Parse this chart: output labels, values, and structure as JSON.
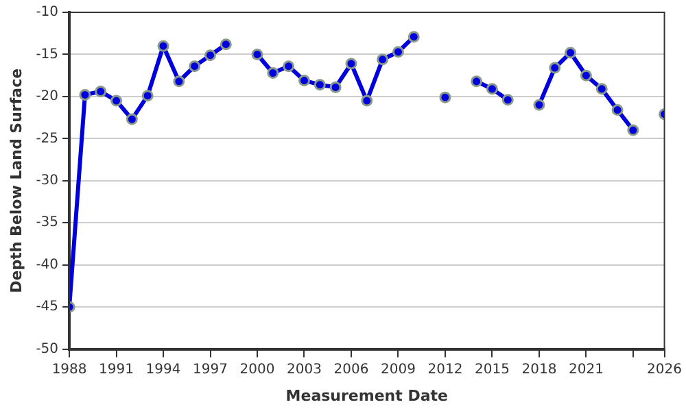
{
  "chart_data": {
    "type": "line",
    "xlabel": "Measurement Date",
    "ylabel": "Depth Below Land Surface",
    "x": [
      1988,
      1989,
      1990,
      1991,
      1992,
      1993,
      1994,
      1995,
      1996,
      1997,
      1998,
      1999,
      2000,
      2001,
      2002,
      2003,
      2004,
      2005,
      2006,
      2007,
      2008,
      2009,
      2010,
      2011,
      2012,
      2013,
      2014,
      2015,
      2016,
      2017,
      2018,
      2019,
      2020,
      2021,
      2022,
      2023,
      2024,
      2025,
      2026
    ],
    "series": [
      {
        "color": "#0000dd",
        "values": [
          -45,
          -19.8,
          -19.4,
          -20.5,
          -22.7,
          -19.9,
          -14,
          -18.2,
          -16.4,
          -15.1,
          -13.8,
          null,
          -15,
          -17.2,
          -16.4,
          -18.1,
          -18.6,
          -18.9,
          -16.1,
          -20.5,
          -15.6,
          -14.7,
          -12.9,
          null,
          -20.1,
          null,
          -18.2,
          -19.1,
          -20.4,
          null,
          -21,
          -16.6,
          -14.8,
          -17.5,
          -19.1,
          -21.6,
          -24,
          null,
          -22.1
        ]
      }
    ],
    "xlim": [
      1988,
      2026
    ],
    "xticks": [
      1988,
      1991,
      1994,
      1997,
      2000,
      2003,
      2006,
      2009,
      2012,
      2015,
      2018,
      2021,
      {
        "value": 2024,
        "label": null
      },
      2026
    ],
    "ylim": [
      -50,
      -10
    ],
    "yticks": [
      -50,
      -45,
      -40,
      -35,
      -30,
      -25,
      -20,
      -15,
      -10
    ],
    "grid": "y",
    "marker": "circle",
    "line_style": "solid",
    "legend": false
  }
}
